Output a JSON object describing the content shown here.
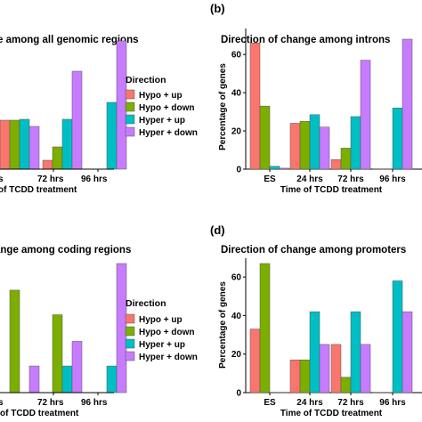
{
  "colors": {
    "Hypo + up": "#F8766D",
    "Hypo + down": "#7CAE00",
    "Hyper + up": "#00BFC4",
    "Hyper + down": "#C77CFF"
  },
  "legend_title": "Direction",
  "chart_data": [
    {
      "type": "bar",
      "panel_label": "",
      "title": "ge among all genomic regions",
      "xlabel": " of TCDD treatment",
      "ylabel": "",
      "categories": [
        "s",
        "",
        "72 hrs",
        "96 hrs"
      ],
      "ylim": [
        0,
        73
      ],
      "yticks": [],
      "series": [
        {
          "name": "Hypo + up",
          "values": [
            null,
            27.5,
            5,
            0
          ]
        },
        {
          "name": "Hypo + down",
          "values": [
            null,
            27.5,
            12.5,
            0
          ]
        },
        {
          "name": "Hyper + up",
          "values": [
            null,
            28,
            28,
            37.5
          ]
        },
        {
          "name": "Hyper + down",
          "values": [
            null,
            24,
            55,
            72
          ]
        }
      ],
      "legend": "right"
    },
    {
      "type": "bar",
      "panel_label": "(b)",
      "title": "Direction of change among introns",
      "xlabel": "Time of TCDD treatment",
      "ylabel": "Percentage of genes",
      "categories": [
        "ES",
        "24 hrs",
        "72 hrs",
        "96 hrs"
      ],
      "ylim": [
        0,
        68
      ],
      "yticks": [
        0,
        20,
        40,
        60
      ],
      "series": [
        {
          "name": "Hypo + up",
          "values": [
            66,
            24,
            5,
            0
          ]
        },
        {
          "name": "Hypo + down",
          "values": [
            33,
            25,
            11,
            0
          ]
        },
        {
          "name": "Hyper + up",
          "values": [
            1.5,
            28.5,
            27.5,
            32
          ]
        },
        {
          "name": "Hyper + down",
          "values": [
            0.5,
            22,
            57,
            68
          ]
        }
      ],
      "legend": "none"
    },
    {
      "type": "bar",
      "panel_label": "",
      "title": "ange among coding regions",
      "xlabel": "of TCDD treatment",
      "ylabel": "",
      "categories": [
        "s",
        "",
        "72 hrs",
        "96 hrs"
      ],
      "ylim": [
        0,
        63
      ],
      "yticks": [],
      "series": [
        {
          "name": "Hypo + up",
          "values": [
            null,
            0,
            0,
            0
          ]
        },
        {
          "name": "Hypo + down",
          "values": [
            null,
            50,
            38,
            0
          ]
        },
        {
          "name": "Hyper + up",
          "values": [
            null,
            0,
            13,
            13
          ]
        },
        {
          "name": "Hyper + down",
          "values": [
            null,
            13,
            25,
            63
          ]
        }
      ],
      "legend": "right"
    },
    {
      "type": "bar",
      "panel_label": "(d)",
      "title": "Direction of change among promoters",
      "xlabel": "Time of TCDD treatment",
      "ylabel": "Percentage of genes",
      "categories": [
        "ES",
        "24 hrs",
        "72 hrs",
        "96 hrs"
      ],
      "ylim": [
        0,
        67
      ],
      "yticks": [
        0,
        20,
        40,
        60
      ],
      "series": [
        {
          "name": "Hypo + up",
          "values": [
            33,
            17,
            25,
            0
          ]
        },
        {
          "name": "Hypo + down",
          "values": [
            67,
            17,
            8,
            0
          ]
        },
        {
          "name": "Hyper + up",
          "values": [
            0,
            42,
            42,
            58
          ]
        },
        {
          "name": "Hyper + down",
          "values": [
            0,
            25,
            25,
            42
          ]
        }
      ],
      "legend": "none"
    }
  ]
}
